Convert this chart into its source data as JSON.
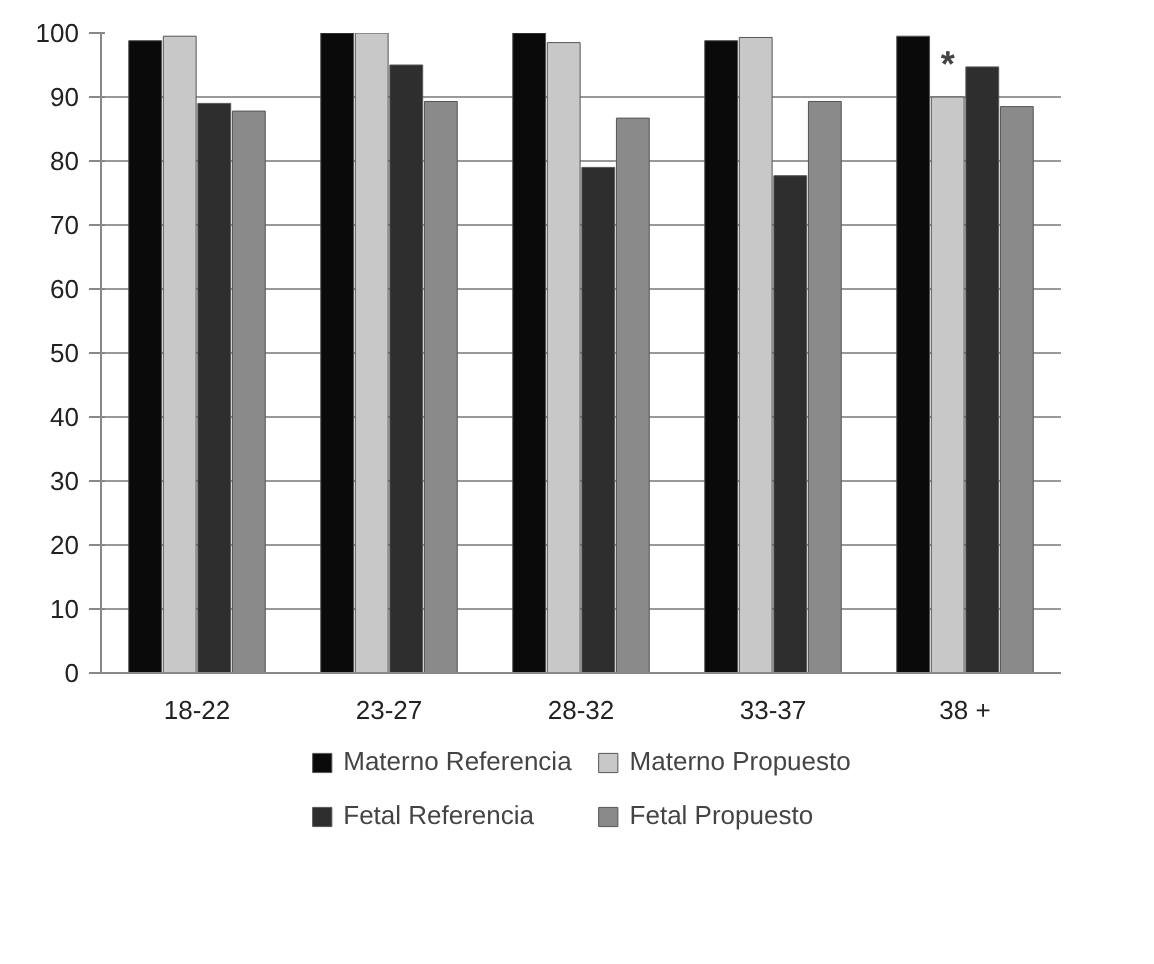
{
  "chart_data": {
    "type": "bar",
    "categories": [
      "18-22",
      "23-27",
      "28-32",
      "33-37",
      "38 +"
    ],
    "series": [
      {
        "name": "Materno Referencia",
        "color": "#0a0a0a",
        "values": [
          98.8,
          100,
          100,
          98.8,
          99.5
        ]
      },
      {
        "name": "Materno Propuesto",
        "color": "#c8c8c8",
        "values": [
          99.5,
          100,
          98.5,
          99.3,
          90
        ]
      },
      {
        "name": "Fetal Referencia",
        "color": "#2e2e2e",
        "values": [
          89,
          95,
          79,
          77.7,
          94.7
        ]
      },
      {
        "name": "Fetal Propuesto",
        "color": "#8a8a8a",
        "values": [
          87.8,
          89.3,
          86.7,
          89.3,
          88.5
        ]
      }
    ],
    "ylim": [
      0,
      100
    ],
    "yticks": [
      0,
      10,
      20,
      30,
      40,
      50,
      60,
      70,
      80,
      90,
      100
    ],
    "grid": "y",
    "legend": "bottom",
    "annotations": [
      {
        "text": "*",
        "x": "38 +",
        "y": 92
      }
    ]
  }
}
